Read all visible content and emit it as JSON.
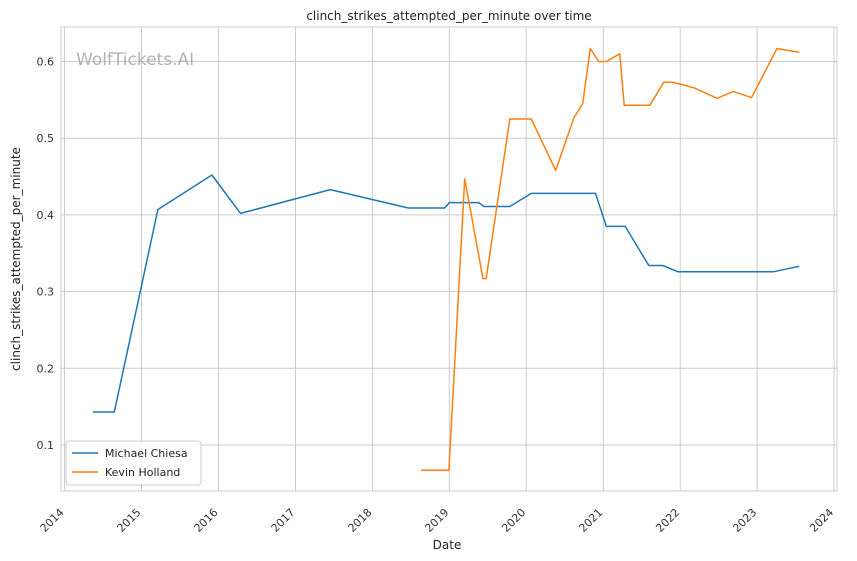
{
  "chart_data": {
    "type": "line",
    "title": "clinch_strikes_attempted_per_minute over time",
    "xlabel": "Date",
    "ylabel": "clinch_strikes_attempted_per_minute",
    "watermark": "WolfTickets.AI",
    "xlim": [
      "2013-12-15",
      "2024-01-15"
    ],
    "ylim": [
      0.04,
      0.645
    ],
    "x_ticks": [
      "2014",
      "2015",
      "2016",
      "2017",
      "2018",
      "2019",
      "2020",
      "2021",
      "2022",
      "2023",
      "2024"
    ],
    "y_ticks": [
      "0.1",
      "0.2",
      "0.3",
      "0.4",
      "0.5",
      "0.6"
    ],
    "grid": true,
    "legend_position": "lower-left",
    "series": [
      {
        "name": "Michael Chiesa",
        "color": "#1f77b4",
        "points": [
          [
            "2014-05-15",
            0.143
          ],
          [
            "2014-08-25",
            0.143
          ],
          [
            "2015-03-20",
            0.407
          ],
          [
            "2015-12-01",
            0.452
          ],
          [
            "2016-04-15",
            0.402
          ],
          [
            "2017-06-15",
            0.433
          ],
          [
            "2018-06-20",
            0.409
          ],
          [
            "2018-12-10",
            0.409
          ],
          [
            "2019-01-01",
            0.416
          ],
          [
            "2019-05-20",
            0.416
          ],
          [
            "2019-06-15",
            0.411
          ],
          [
            "2019-10-15",
            0.411
          ],
          [
            "2020-01-25",
            0.428
          ],
          [
            "2020-11-25",
            0.428
          ],
          [
            "2021-01-15",
            0.385
          ],
          [
            "2021-04-15",
            0.385
          ],
          [
            "2021-08-05",
            0.334
          ],
          [
            "2021-10-10",
            0.334
          ],
          [
            "2021-12-20",
            0.326
          ],
          [
            "2023-03-20",
            0.326
          ],
          [
            "2023-07-20",
            0.333
          ]
        ]
      },
      {
        "name": "Kevin Holland",
        "color": "#ff7f0e",
        "points": [
          [
            "2018-08-20",
            0.067
          ],
          [
            "2018-12-30",
            0.067
          ],
          [
            "2019-03-15",
            0.447
          ],
          [
            "2019-06-10",
            0.317
          ],
          [
            "2019-06-25",
            0.317
          ],
          [
            "2019-10-15",
            0.525
          ],
          [
            "2020-01-25",
            0.525
          ],
          [
            "2020-05-20",
            0.458
          ],
          [
            "2020-08-15",
            0.527
          ],
          [
            "2020-09-25",
            0.545
          ],
          [
            "2020-10-31",
            0.617
          ],
          [
            "2020-12-10",
            0.6
          ],
          [
            "2021-01-15",
            0.6
          ],
          [
            "2021-03-20",
            0.61
          ],
          [
            "2021-04-10",
            0.543
          ],
          [
            "2021-08-10",
            0.543
          ],
          [
            "2021-10-15",
            0.573
          ],
          [
            "2021-11-25",
            0.573
          ],
          [
            "2022-03-05",
            0.566
          ],
          [
            "2022-06-25",
            0.552
          ],
          [
            "2022-09-10",
            0.561
          ],
          [
            "2022-12-05",
            0.553
          ],
          [
            "2023-04-05",
            0.617
          ],
          [
            "2023-07-20",
            0.612
          ]
        ]
      }
    ]
  }
}
